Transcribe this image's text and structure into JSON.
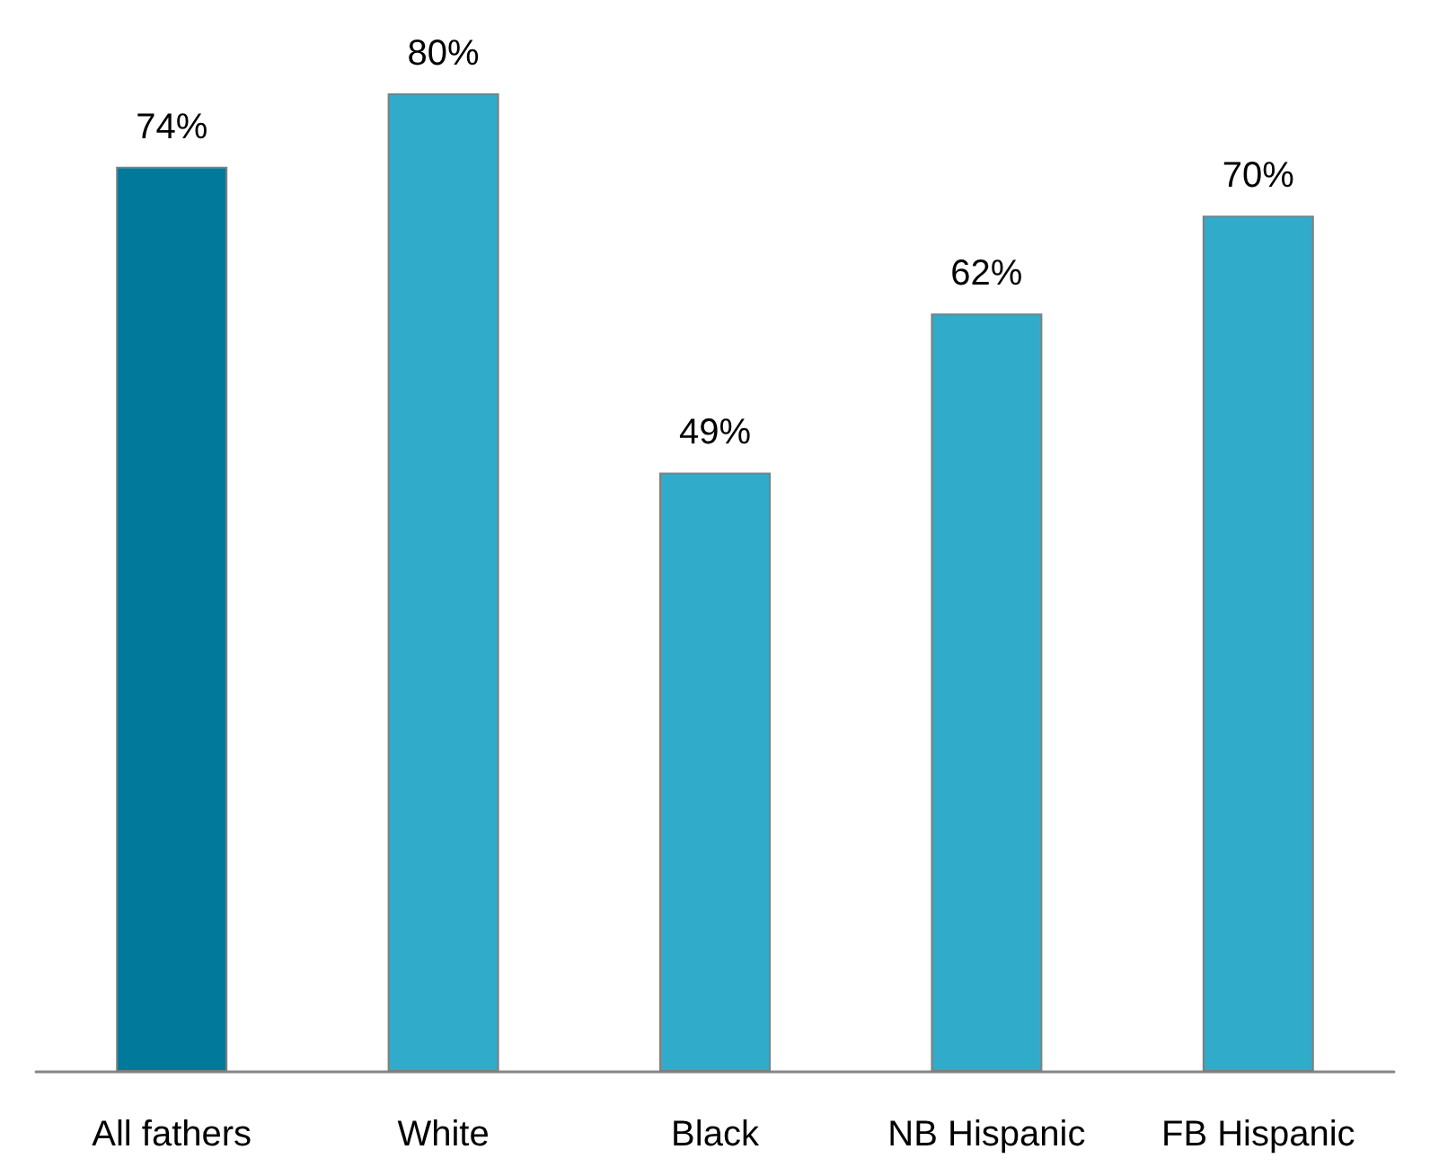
{
  "chart_data": {
    "type": "bar",
    "categories": [
      "All fathers",
      "White",
      "Black",
      "NB Hispanic",
      "FB Hispanic"
    ],
    "values": [
      74,
      80,
      49,
      62,
      70
    ],
    "colors": [
      "#00799a",
      "#31abca",
      "#31abca",
      "#31abca",
      "#31abca"
    ],
    "value_labels": [
      "74%",
      "80%",
      "49%",
      "62%",
      "70%"
    ],
    "grid": false
  }
}
